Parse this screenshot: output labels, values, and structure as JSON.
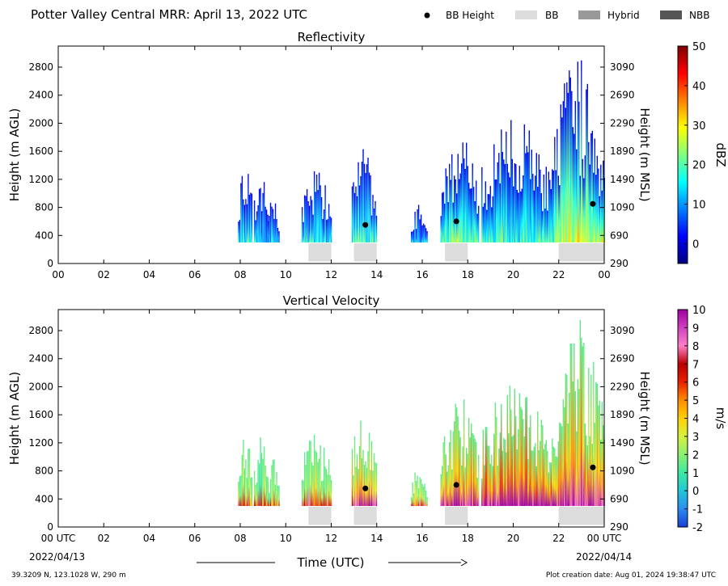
{
  "header": {
    "title": "Potter Valley Central MRR:  April 13, 2022 UTC",
    "legend": [
      {
        "label": "BB Height",
        "kind": "dot",
        "color": "#000000"
      },
      {
        "label": "BB",
        "kind": "box",
        "color": "#dcdcdc"
      },
      {
        "label": "Hybrid",
        "kind": "box",
        "color": "#999999"
      },
      {
        "label": "NBB",
        "kind": "box",
        "color": "#555555"
      }
    ]
  },
  "chart_data": [
    {
      "type": "heatmap",
      "title": "Reflectivity",
      "xlabel": "",
      "ylabel": "Height (m AGL)",
      "ylabel_right": "Height (m MSL)",
      "xlim": [
        0,
        24
      ],
      "ylim": [
        0,
        3100
      ],
      "x_ticks": [
        "00",
        "02",
        "04",
        "06",
        "08",
        "10",
        "12",
        "14",
        "16",
        "18",
        "20",
        "22",
        "00"
      ],
      "y_ticks": [
        0,
        400,
        800,
        1200,
        1600,
        2000,
        2400,
        2800
      ],
      "y_ticks_right": [
        "290",
        "690",
        "1090",
        "1490",
        "1890",
        "2290",
        "2690",
        "3090"
      ],
      "colorbar": {
        "label": "dBZ",
        "min": -5,
        "max": 50,
        "ticks": [
          0,
          10,
          20,
          30,
          40,
          50
        ]
      },
      "precip_columns": [
        {
          "start": 7.9,
          "end": 8.5,
          "top": 1500,
          "level": 0.15
        },
        {
          "start": 8.6,
          "end": 9.2,
          "top": 1350,
          "level": 0.12
        },
        {
          "start": 9.2,
          "end": 9.7,
          "top": 1000,
          "level": 0.1
        },
        {
          "start": 10.7,
          "end": 12.0,
          "top": 1400,
          "level": 0.15
        },
        {
          "start": 12.9,
          "end": 14.0,
          "top": 1700,
          "level": 0.2
        },
        {
          "start": 15.5,
          "end": 16.2,
          "top": 850,
          "level": 0.1
        },
        {
          "start": 16.8,
          "end": 18.5,
          "top": 1900,
          "level": 0.25
        },
        {
          "start": 18.6,
          "end": 21.8,
          "top": 2100,
          "level": 0.2
        },
        {
          "start": 21.8,
          "end": 24.0,
          "top": 3000,
          "level": 0.35
        }
      ],
      "bright_band": [
        {
          "start": 11.0,
          "end": 12.0
        },
        {
          "start": 13.0,
          "end": 14.0
        },
        {
          "start": 17.0,
          "end": 18.0
        },
        {
          "start": 22.0,
          "end": 24.0
        }
      ],
      "bb_height_points": [
        {
          "x": 13.5,
          "y": 550
        },
        {
          "x": 17.5,
          "y": 600
        },
        {
          "x": 23.5,
          "y": 850
        }
      ]
    },
    {
      "type": "heatmap",
      "title": "Vertical Velocity",
      "xlabel": "Time (UTC)",
      "ylabel": "Height (m AGL)",
      "ylabel_right": "Height (m MSL)",
      "xlim": [
        0,
        24
      ],
      "ylim": [
        0,
        3100
      ],
      "x_ticks": [
        "00 UTC",
        "02",
        "04",
        "06",
        "08",
        "10",
        "12",
        "14",
        "16",
        "18",
        "20",
        "22",
        "00 UTC"
      ],
      "x_tick_dates": {
        "left": "2022/04/13",
        "right": "2022/04/14"
      },
      "y_ticks": [
        0,
        400,
        800,
        1200,
        1600,
        2000,
        2400,
        2800
      ],
      "y_ticks_right": [
        "290",
        "690",
        "1090",
        "1490",
        "1890",
        "2290",
        "2690",
        "3090"
      ],
      "colorbar": {
        "label": "m/s",
        "min": -2,
        "max": 10,
        "ticks": [
          -2,
          -1,
          0,
          1,
          2,
          3,
          4,
          5,
          6,
          7,
          8,
          9,
          10
        ]
      },
      "precip_columns": [
        {
          "start": 7.9,
          "end": 8.5,
          "top": 1500,
          "level": 0.25
        },
        {
          "start": 8.6,
          "end": 9.2,
          "top": 1350,
          "level": 0.22
        },
        {
          "start": 9.2,
          "end": 9.7,
          "top": 1000,
          "level": 0.2
        },
        {
          "start": 10.7,
          "end": 12.0,
          "top": 1400,
          "level": 0.3
        },
        {
          "start": 12.9,
          "end": 14.0,
          "top": 1700,
          "level": 0.5
        },
        {
          "start": 15.5,
          "end": 16.2,
          "top": 850,
          "level": 0.3
        },
        {
          "start": 16.8,
          "end": 18.5,
          "top": 1900,
          "level": 0.5
        },
        {
          "start": 18.6,
          "end": 21.8,
          "top": 2100,
          "level": 0.6
        },
        {
          "start": 21.8,
          "end": 24.0,
          "top": 3000,
          "level": 0.55
        }
      ],
      "bright_band": [
        {
          "start": 11.0,
          "end": 12.0
        },
        {
          "start": 13.0,
          "end": 14.0
        },
        {
          "start": 17.0,
          "end": 18.0
        },
        {
          "start": 22.0,
          "end": 24.0
        }
      ],
      "bb_height_points": [
        {
          "x": 13.5,
          "y": 550
        },
        {
          "x": 17.5,
          "y": 600
        },
        {
          "x": 23.5,
          "y": 850
        }
      ]
    }
  ],
  "footer": {
    "location": "39.3209 N, 123.1028 W, 290 m",
    "creation_date": "Plot creation date: Aug 01, 2024 19:38:47 UTC"
  }
}
